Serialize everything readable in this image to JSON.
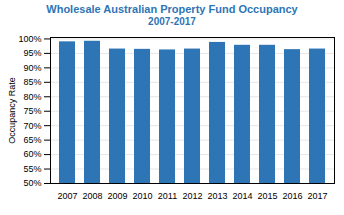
{
  "chart_data": {
    "type": "bar",
    "title": "Wholesale Australian Property Fund Occupancy",
    "subtitle": "2007-2017",
    "categories": [
      "2007",
      "2008",
      "2009",
      "2010",
      "2011",
      "2012",
      "2013",
      "2014",
      "2015",
      "2016",
      "2017"
    ],
    "values": [
      99.0,
      99.2,
      96.5,
      96.4,
      96.2,
      96.5,
      98.8,
      97.8,
      97.8,
      96.3,
      96.5
    ],
    "color": "#2E75B6",
    "ylabel": "Occupancy Rate",
    "ylim": [
      50,
      100.5
    ],
    "yticks": [
      {
        "value": 50,
        "label": "50%"
      },
      {
        "value": 55,
        "label": "55%"
      },
      {
        "value": 60,
        "label": "60%"
      },
      {
        "value": 65,
        "label": "65%"
      },
      {
        "value": 70,
        "label": "70%"
      },
      {
        "value": 75,
        "label": "75%"
      },
      {
        "value": 80,
        "label": "80%"
      },
      {
        "value": 85,
        "label": "85%"
      },
      {
        "value": 90,
        "label": "90%"
      },
      {
        "value": 95,
        "label": "95%"
      },
      {
        "value": 100,
        "label": "100%"
      }
    ],
    "grid": true
  }
}
